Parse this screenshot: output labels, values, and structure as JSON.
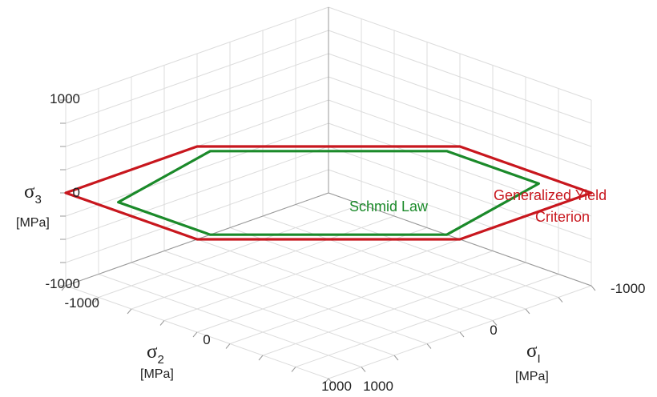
{
  "chart_data": {
    "type": "line",
    "view": "3d-isometric",
    "grid": true,
    "axes": {
      "sigma1": {
        "symbol": "σ",
        "subscript": "I",
        "unit": "[MPa]",
        "range": [
          -1000,
          1000
        ],
        "tick_labels": [
          "-1000",
          "0",
          "1000"
        ]
      },
      "sigma2": {
        "symbol": "σ",
        "subscript": "2",
        "unit": "[MPa]",
        "range": [
          -1000,
          1000
        ],
        "tick_labels": [
          "-1000",
          "0",
          "1000"
        ]
      },
      "sigma3": {
        "symbol": "σ",
        "subscript": "3",
        "unit": "[MPa]",
        "range": [
          -1000,
          1000
        ],
        "tick_labels": [
          "-1000",
          "0",
          "1000"
        ]
      }
    },
    "series": [
      {
        "name": "Generalized Yield Criterion",
        "name_lines": [
          "Generalized Yield",
          "Criterion"
        ],
        "color": "#c8171e",
        "closed": true,
        "points": [
          [
            0,
            1000,
            1000
          ],
          [
            1000,
            0,
            1000
          ],
          [
            1000,
            -1000,
            0
          ],
          [
            0,
            -1000,
            -1000
          ],
          [
            -1000,
            0,
            -1000
          ],
          [
            -1000,
            1000,
            0
          ]
        ]
      },
      {
        "name": "Schmid Law",
        "name_lines": [
          "Schmid Law"
        ],
        "color": "#1b8a2a",
        "closed": true,
        "points": [
          [
            -100,
            800,
            800
          ],
          [
            800,
            -100,
            800
          ],
          [
            800,
            -800,
            100
          ],
          [
            100,
            -800,
            -800
          ],
          [
            -800,
            100,
            -800
          ],
          [
            -800,
            800,
            -100
          ]
        ]
      }
    ]
  }
}
